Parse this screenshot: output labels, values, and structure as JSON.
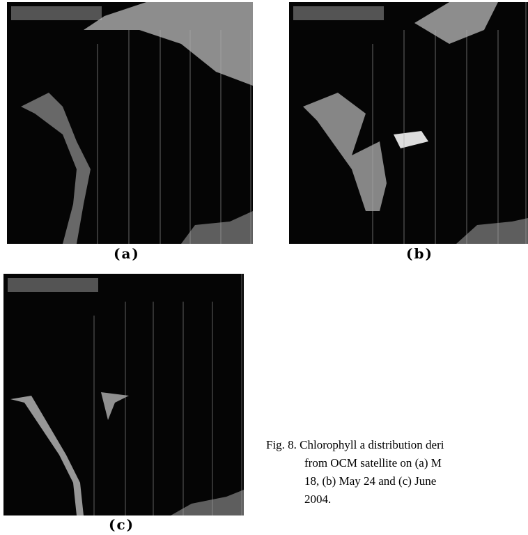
{
  "figure": {
    "panels": [
      {
        "label": "(a)"
      },
      {
        "label": "(b)"
      },
      {
        "label": "(c)"
      }
    ],
    "caption": {
      "lines": [
        "Fig. 8. Chlorophyll a distribution deri",
        "from OCM satellite on (a) M",
        "18, (b) May 24 and (c) June",
        "2004."
      ]
    }
  }
}
